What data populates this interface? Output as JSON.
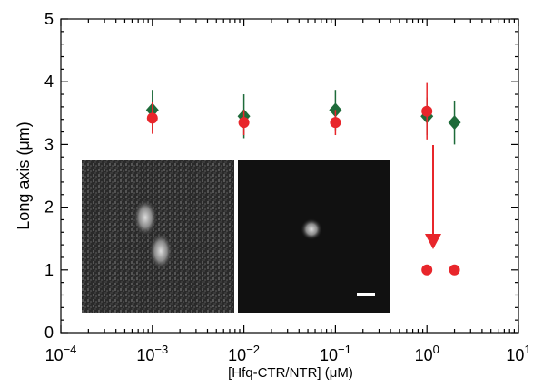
{
  "chart_data": {
    "type": "scatter",
    "x_label": "[Hfq-CTR/NTR]  (μM)",
    "y_label": "Long axis (μm)",
    "log_x": true,
    "xlim": [
      0.0001,
      10
    ],
    "xticks": [
      {
        "value": 0.0001,
        "label": "10",
        "exponent": "−4"
      },
      {
        "value": 0.001,
        "label": "10",
        "exponent": "−3"
      },
      {
        "value": 0.01,
        "label": "10",
        "exponent": "−2"
      },
      {
        "value": 0.1,
        "label": "10",
        "exponent": "−1"
      },
      {
        "value": 1,
        "label": "10",
        "exponent": "0"
      },
      {
        "value": 10,
        "label": "10",
        "exponent": "1"
      }
    ],
    "ylim": [
      0,
      5
    ],
    "yticks": [
      0,
      1,
      2,
      3,
      4,
      5
    ],
    "series": [
      {
        "name": "green",
        "color": "#1e6b3a",
        "marker": "diamond",
        "x": [
          0.001,
          0.01,
          0.1,
          1,
          2
        ],
        "values": [
          3.55,
          3.45,
          3.55,
          3.45,
          3.35
        ],
        "errors": [
          0.32,
          0.35,
          0.32,
          0.3,
          0.35
        ]
      },
      {
        "name": "red",
        "color": "#e8262b",
        "marker": "circle",
        "x": [
          0.001,
          0.01,
          0.1,
          1,
          1,
          2
        ],
        "values": [
          3.42,
          3.35,
          3.35,
          3.53,
          1.0,
          1.0
        ],
        "errors": [
          0.25,
          0.2,
          0.2,
          0.45,
          0,
          0
        ]
      }
    ]
  }
}
